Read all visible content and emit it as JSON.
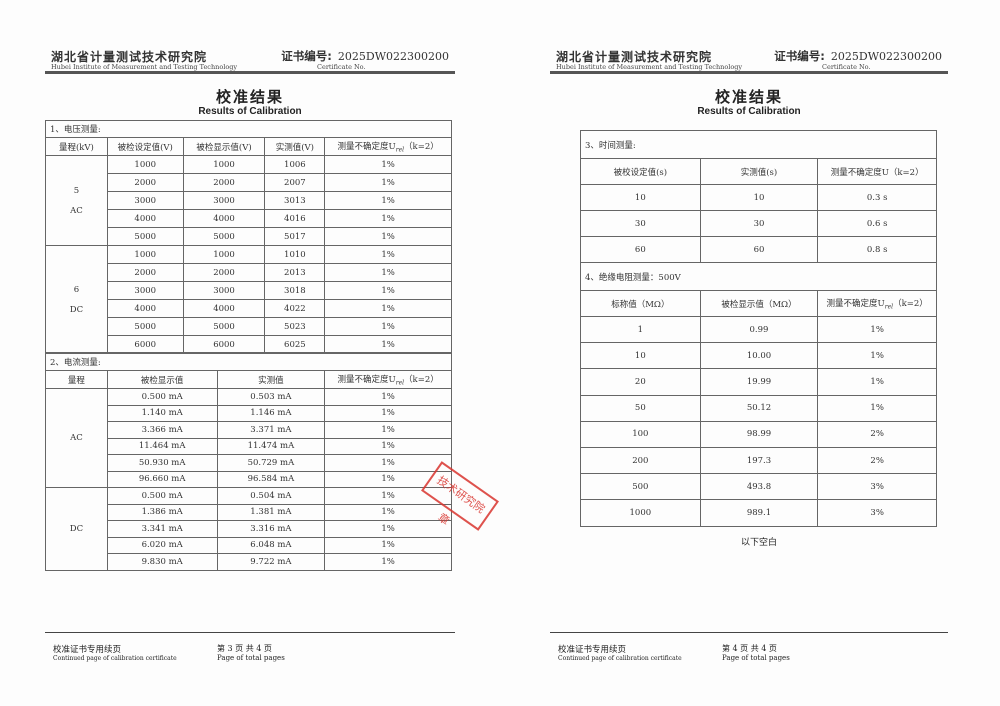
{
  "header": {
    "institute_cn": "湖北省计量测试技术研究院",
    "institute_en": "Hubei Institute of Measurement and Testing Technology",
    "cert_label": "证书编号:",
    "cert_label_en": "Certificate No.",
    "cert_no": "2025DW022300200"
  },
  "title_cn": "校准结果",
  "title_en": "Results of Calibration",
  "unc_header": {
    "prefix": "测量不确定度U",
    "sub": "rel",
    "k": "（k=2）"
  },
  "voltage": {
    "section": "1、电压测量:",
    "headers": [
      "量程(kV)",
      "被检设定值(V)",
      "被检显示值(V)",
      "实测值(V)"
    ],
    "groups": [
      {
        "range": "5",
        "type": "AC",
        "rows": [
          [
            "1000",
            "1000",
            "1006",
            "1%"
          ],
          [
            "2000",
            "2000",
            "2007",
            "1%"
          ],
          [
            "3000",
            "3000",
            "3013",
            "1%"
          ],
          [
            "4000",
            "4000",
            "4016",
            "1%"
          ],
          [
            "5000",
            "5000",
            "5017",
            "1%"
          ]
        ]
      },
      {
        "range": "6",
        "type": "DC",
        "rows": [
          [
            "1000",
            "1000",
            "1010",
            "1%"
          ],
          [
            "2000",
            "2000",
            "2013",
            "1%"
          ],
          [
            "3000",
            "3000",
            "3018",
            "1%"
          ],
          [
            "4000",
            "4000",
            "4022",
            "1%"
          ],
          [
            "5000",
            "5000",
            "5023",
            "1%"
          ],
          [
            "6000",
            "6000",
            "6025",
            "1%"
          ]
        ]
      }
    ]
  },
  "current": {
    "section": "2、电流测量:",
    "headers": [
      "量程",
      "被检显示值",
      "实测值"
    ],
    "groups": [
      {
        "type": "AC",
        "rows": [
          [
            "0.500 mA",
            "0.503 mA",
            "1%"
          ],
          [
            "1.140 mA",
            "1.146 mA",
            "1%"
          ],
          [
            "3.366 mA",
            "3.371 mA",
            "1%"
          ],
          [
            "11.464 mA",
            "11.474 mA",
            "1%"
          ],
          [
            "50.930 mA",
            "50.729 mA",
            "1%"
          ],
          [
            "96.660 mA",
            "96.584 mA",
            "1%"
          ]
        ]
      },
      {
        "type": "DC",
        "rows": [
          [
            "0.500 mA",
            "0.504 mA",
            "1%"
          ],
          [
            "1.386 mA",
            "1.381 mA",
            "1%"
          ],
          [
            "3.341 mA",
            "3.316 mA",
            "1%"
          ],
          [
            "6.020 mA",
            "6.048 mA",
            "1%"
          ],
          [
            "9.830 mA",
            "9.722 mA",
            "1%"
          ]
        ]
      }
    ]
  },
  "time": {
    "section": "3、时间测量:",
    "headers": [
      "被校设定值(s)",
      "实测值(s)",
      "测量不确定度U（k=2）"
    ],
    "rows": [
      [
        "10",
        "10",
        "0.3 s"
      ],
      [
        "30",
        "30",
        "0.6 s"
      ],
      [
        "60",
        "60",
        "0.8 s"
      ]
    ]
  },
  "insulation": {
    "section": "4、绝缘电阻测量：500V",
    "headers": [
      "标称值（MΩ）",
      "被检显示值（MΩ）"
    ],
    "rows": [
      [
        "1",
        "0.99",
        "1%"
      ],
      [
        "10",
        "10.00",
        "1%"
      ],
      [
        "20",
        "19.99",
        "1%"
      ],
      [
        "50",
        "50.12",
        "1%"
      ],
      [
        "100",
        "98.99",
        "2%"
      ],
      [
        "200",
        "197.3",
        "2%"
      ],
      [
        "500",
        "493.8",
        "3%"
      ],
      [
        "1000",
        "989.1",
        "3%"
      ]
    ]
  },
  "blank_note": "以下空白",
  "stamp_text": "技术研究院 章",
  "stamp_color": "#d9352f",
  "footer": {
    "label_cn": "校准证书专用续页",
    "label_en": "Continued page of calibration certificate",
    "page_en": "Page  of  total pages",
    "p1": "第 3 页 共 4 页",
    "p2": "第 4 页 共 4 页"
  }
}
